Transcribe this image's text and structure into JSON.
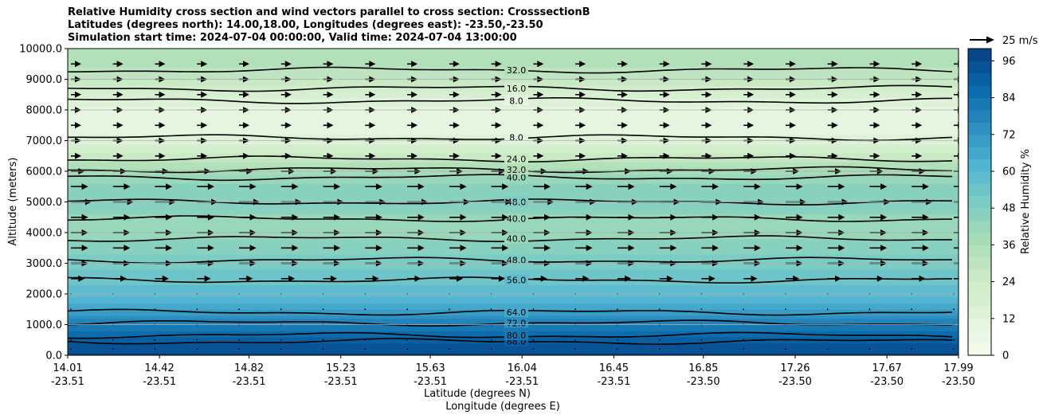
{
  "chart_data": {
    "type": "contour",
    "title_lines": [
      "Relative Humidity cross section and wind vectors parallel to cross section: CrosssectionB",
      "Latitudes (degrees north): 14.00,18.00, Longitudes (degrees east): -23.50,-23.50",
      "Simulation start time: 2024-07-04 00:00:00, Valid time: 2024-07-04 13:00:00"
    ],
    "ylabel": "Altitude (meters)",
    "xlabel_line1": "Latitude (degrees N)",
    "xlabel_line2": "Longitude (degrees E)",
    "ylim": [
      0,
      10000
    ],
    "xlim": [
      14.01,
      17.99
    ],
    "y_ticks": [
      0,
      1000,
      2000,
      3000,
      4000,
      5000,
      6000,
      7000,
      8000,
      9000,
      10000
    ],
    "y_tick_labels": [
      "0.0",
      "1000.0",
      "2000.0",
      "3000.0",
      "4000.0",
      "5000.0",
      "6000.0",
      "7000.0",
      "8000.0",
      "9000.0",
      "10000.0"
    ],
    "x_ticks": [
      {
        "lat": 14.01,
        "lat_label": "14.01",
        "lon_label": "-23.51"
      },
      {
        "lat": 14.42,
        "lat_label": "14.42",
        "lon_label": "-23.51"
      },
      {
        "lat": 14.82,
        "lat_label": "14.82",
        "lon_label": "-23.51"
      },
      {
        "lat": 15.23,
        "lat_label": "15.23",
        "lon_label": "-23.51"
      },
      {
        "lat": 15.63,
        "lat_label": "15.63",
        "lon_label": "-23.51"
      },
      {
        "lat": 16.04,
        "lat_label": "16.04",
        "lon_label": "-23.51"
      },
      {
        "lat": 16.45,
        "lat_label": "16.45",
        "lon_label": "-23.51"
      },
      {
        "lat": 16.85,
        "lat_label": "16.85",
        "lon_label": "-23.50"
      },
      {
        "lat": 17.26,
        "lat_label": "17.26",
        "lon_label": "-23.50"
      },
      {
        "lat": 17.67,
        "lat_label": "17.67",
        "lon_label": "-23.50"
      },
      {
        "lat": 17.99,
        "lat_label": "17.99",
        "lon_label": "-23.50"
      }
    ],
    "colorbar": {
      "label": "Relative Humidity %",
      "min": 0,
      "max": 100,
      "ticks": [
        0,
        12,
        24,
        36,
        48,
        60,
        72,
        84,
        96
      ],
      "tick_labels": [
        "0",
        "12",
        "24",
        "36",
        "48",
        "60",
        "72",
        "84",
        "96"
      ],
      "colormap": "GnBu"
    },
    "quiver_key": {
      "label": "25 m/s",
      "speed": 25
    },
    "rh_profile": [
      {
        "alt": 0,
        "rh": 97
      },
      {
        "alt": 500,
        "rh": 90
      },
      {
        "alt": 1000,
        "rh": 80
      },
      {
        "alt": 1500,
        "rh": 68
      },
      {
        "alt": 2000,
        "rh": 58
      },
      {
        "alt": 2500,
        "rh": 55
      },
      {
        "alt": 3000,
        "rh": 50
      },
      {
        "alt": 3500,
        "rh": 46
      },
      {
        "alt": 4000,
        "rh": 42
      },
      {
        "alt": 4500,
        "rh": 43
      },
      {
        "alt": 5000,
        "rh": 47
      },
      {
        "alt": 5500,
        "rh": 46
      },
      {
        "alt": 6000,
        "rh": 38
      },
      {
        "alt": 6500,
        "rh": 26
      },
      {
        "alt": 7000,
        "rh": 14
      },
      {
        "alt": 7500,
        "rh": 8
      },
      {
        "alt": 8000,
        "rh": 10
      },
      {
        "alt": 8500,
        "rh": 18
      },
      {
        "alt": 9000,
        "rh": 28
      },
      {
        "alt": 9500,
        "rh": 33
      },
      {
        "alt": 10000,
        "rh": 36
      }
    ],
    "contours": [
      {
        "level": "88.0",
        "alt": 450
      },
      {
        "level": "80.0",
        "alt": 650
      },
      {
        "level": "72.0",
        "alt": 1050
      },
      {
        "level": "64.0",
        "alt": 1400
      },
      {
        "level": "56.0",
        "alt": 2450
      },
      {
        "level": "48.0",
        "alt": 3100
      },
      {
        "level": "40.0",
        "alt": 3800
      },
      {
        "level": "40.0",
        "alt": 4450
      },
      {
        "level": "48.0",
        "alt": 5000
      },
      {
        "level": "40.0",
        "alt": 5800
      },
      {
        "level": "32.0",
        "alt": 6050
      },
      {
        "level": "24.0",
        "alt": 6400
      },
      {
        "level": "8.0",
        "alt": 7100
      },
      {
        "level": "8.0",
        "alt": 8300
      },
      {
        "level": "16.0",
        "alt": 8700
      },
      {
        "level": "32.0",
        "alt": 9300
      }
    ],
    "vector_rows": [
      {
        "alt": 200,
        "speed": 1
      },
      {
        "alt": 500,
        "speed": 1
      },
      {
        "alt": 1000,
        "speed": 1
      },
      {
        "alt": 1500,
        "speed": 1
      },
      {
        "alt": 2000,
        "speed": 1
      },
      {
        "alt": 2500,
        "speed": 4
      },
      {
        "alt": 3000,
        "speed": 5
      },
      {
        "alt": 3500,
        "speed": 5
      },
      {
        "alt": 4000,
        "speed": 5
      },
      {
        "alt": 4500,
        "speed": 5
      },
      {
        "alt": 5000,
        "speed": 6
      },
      {
        "alt": 5500,
        "speed": 5
      },
      {
        "alt": 6000,
        "speed": 4
      },
      {
        "alt": 6500,
        "speed": 3
      },
      {
        "alt": 7000,
        "speed": 3
      },
      {
        "alt": 7500,
        "speed": 3
      },
      {
        "alt": 8000,
        "speed": 3
      },
      {
        "alt": 8500,
        "speed": 3
      },
      {
        "alt": 9000,
        "speed": 3
      },
      {
        "alt": 9500,
        "speed": 3
      }
    ]
  }
}
